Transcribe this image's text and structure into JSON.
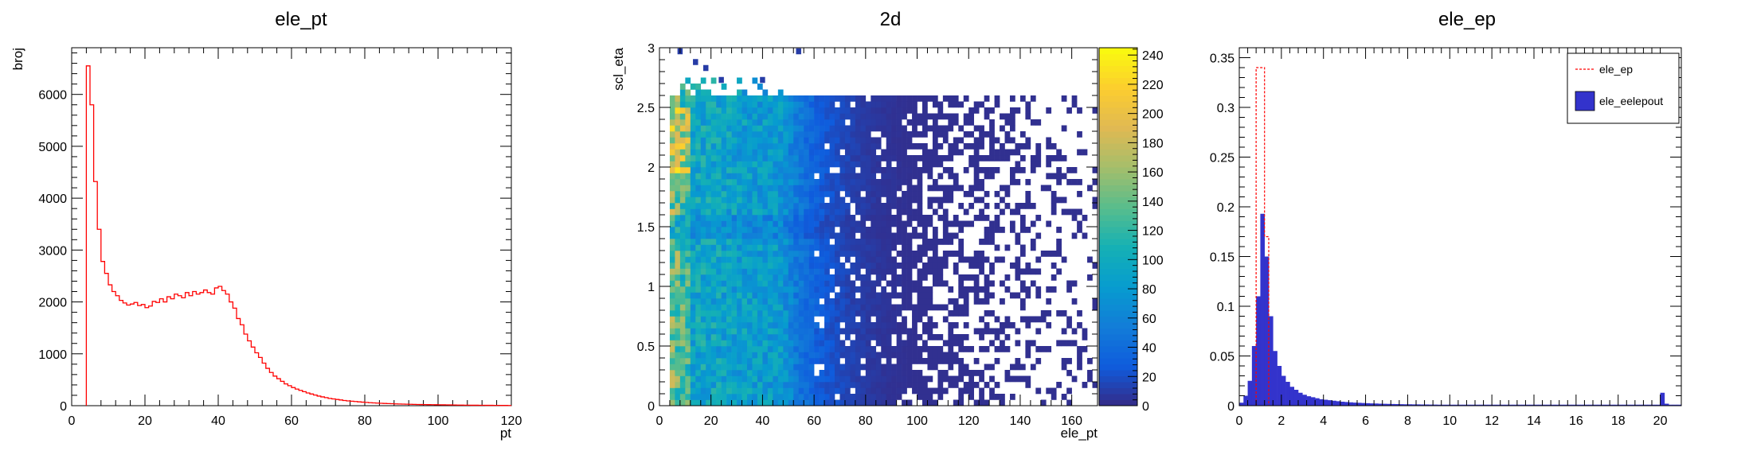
{
  "chart_data": [
    {
      "type": "histogram",
      "title": "ele_pt",
      "xlabel": "pt",
      "ylabel": "broj",
      "xlim": [
        0,
        120
      ],
      "ylim": [
        0,
        6900
      ],
      "xticks": [
        0,
        20,
        40,
        60,
        80,
        100,
        120
      ],
      "yticks": [
        0,
        1000,
        2000,
        3000,
        4000,
        5000,
        6000
      ],
      "line_color": "#ff0000",
      "bin_width": 1,
      "bin_start": 4,
      "values": [
        6550,
        5800,
        4320,
        3400,
        2780,
        2550,
        2330,
        2200,
        2120,
        2030,
        1980,
        1940,
        1960,
        1990,
        1930,
        1950,
        1890,
        1920,
        2010,
        1990,
        2060,
        2000,
        2100,
        2060,
        2150,
        2120,
        2080,
        2180,
        2120,
        2200,
        2150,
        2180,
        2230,
        2180,
        2150,
        2270,
        2300,
        2220,
        2150,
        2000,
        1880,
        1680,
        1560,
        1380,
        1250,
        1130,
        1020,
        930,
        820,
        720,
        640,
        570,
        520,
        470,
        420,
        385,
        350,
        320,
        295,
        270,
        245,
        225,
        205,
        185,
        170,
        155,
        140,
        130,
        120,
        110,
        100,
        92,
        86,
        80,
        74,
        68,
        63,
        58,
        54,
        50,
        46,
        43,
        40,
        38,
        35,
        33,
        31,
        29,
        27,
        25,
        23,
        22,
        21,
        20,
        19,
        18,
        17,
        16,
        15,
        14,
        13,
        12,
        11,
        10,
        10,
        9,
        9,
        8,
        8,
        7,
        7,
        6,
        6,
        5,
        5,
        4
      ]
    },
    {
      "type": "heatmap",
      "title": "2d",
      "xlabel": "ele_pt",
      "ylabel": "scl_eta",
      "xlim": [
        0,
        170
      ],
      "ylim": [
        0,
        3
      ],
      "xticks": [
        0,
        20,
        40,
        60,
        80,
        100,
        120,
        140,
        160
      ],
      "yticks": [
        0,
        0.5,
        1,
        1.5,
        2,
        2.5,
        3
      ],
      "zlim": [
        0,
        245
      ],
      "zticks": [
        0,
        20,
        40,
        60,
        80,
        100,
        120,
        140,
        160,
        180,
        200,
        220,
        240
      ],
      "colorscale": "parula",
      "x_bin_width": 2,
      "y_bin_width": 0.05
    },
    {
      "type": "histogram",
      "title": "ele_ep",
      "xlim": [
        0,
        21
      ],
      "ylim": [
        0,
        0.36
      ],
      "xticks": [
        0,
        2,
        4,
        6,
        8,
        10,
        12,
        14,
        16,
        18,
        20
      ],
      "yticks": [
        0,
        0.05,
        0.1,
        0.15,
        0.2,
        0.25,
        0.3,
        0.35
      ],
      "bin_width": 0.2,
      "legend_position": "top-right",
      "series": [
        {
          "name": "ele_eelepout",
          "style": "filled",
          "color": "#3333cc",
          "bin_start": 0,
          "values": [
            0.003,
            0.01,
            0.025,
            0.06,
            0.11,
            0.193,
            0.15,
            0.09,
            0.055,
            0.04,
            0.03,
            0.024,
            0.019,
            0.016,
            0.013,
            0.011,
            0.0095,
            0.0085,
            0.0075,
            0.0065,
            0.006,
            0.0055,
            0.005,
            0.0045,
            0.004,
            0.0037,
            0.0034,
            0.0031,
            0.0029,
            0.0027,
            0.0025,
            0.0023,
            0.0022,
            0.002,
            0.0019,
            0.0018,
            0.0017,
            0.0016,
            0.0015,
            0.0014,
            0.0014,
            0.0013,
            0.0013,
            0.0012,
            0.0012,
            0.0011,
            0.0011,
            0.001,
            0.001,
            0.001,
            0.001,
            0.001,
            0.001,
            0.001,
            0.001,
            0.001,
            0.001,
            0.001,
            0.001,
            0.001,
            0.001,
            0.001,
            0.001,
            0.001,
            0.001,
            0.001,
            0.001,
            0.001,
            0.001,
            0.001,
            0.001,
            0.001,
            0.001,
            0.001,
            0.001,
            0.001,
            0.001,
            0.001,
            0.001,
            0.001,
            0.001,
            0.001,
            0.001,
            0.001,
            0.001,
            0.001,
            0.001,
            0.001,
            0.001,
            0.001,
            0.001,
            0.001,
            0.001,
            0.001,
            0.001,
            0.001,
            0.001,
            0.001,
            0.001,
            0.001,
            0.013,
            0.002,
            0.001,
            0.001,
            0.001
          ]
        },
        {
          "name": "ele_ep",
          "style": "dashed",
          "color": "#ff0000",
          "bin_start": 0.8,
          "values": [
            0.34,
            0.34,
            0.17
          ]
        }
      ]
    }
  ]
}
